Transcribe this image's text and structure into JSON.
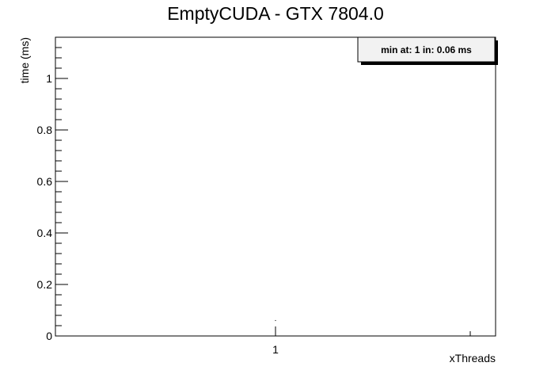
{
  "chart_data": {
    "type": "line",
    "title": "EmptyCUDA - GTX 7804.0",
    "xlabel": "xThreads",
    "ylabel": "time (ms)",
    "xlim": [
      0.5,
      1.5
    ],
    "ylim": [
      0,
      1.16
    ],
    "x_ticks": [
      1
    ],
    "x_tick_labels": [
      "1"
    ],
    "y_ticks": [
      0,
      0.2,
      0.4,
      0.6,
      0.8,
      1
    ],
    "y_tick_labels": [
      "0",
      "0.2",
      "0.4",
      "0.6",
      "0.8",
      "1"
    ],
    "series": [
      {
        "x": [
          1
        ],
        "y": [
          0.06
        ]
      }
    ],
    "grid": false,
    "legend_placement": "top-right",
    "annotation": "min at: 1 in: 0.06 ms"
  }
}
